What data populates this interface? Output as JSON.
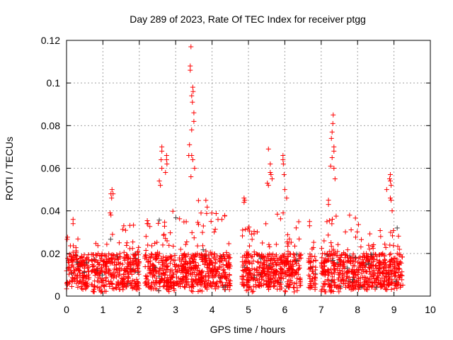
{
  "chart_data": {
    "type": "scatter",
    "title": "Day 289 of 2023, Rate Of TEC Index for receiver ptgg",
    "xlabel": "GPS time / hours",
    "ylabel": "ROTI / TECUs",
    "xlim": [
      0,
      10
    ],
    "ylim": [
      0,
      0.12
    ],
    "xticks": [
      "0",
      "1",
      "2",
      "3",
      "4",
      "5",
      "6",
      "7",
      "8",
      "9",
      "10"
    ],
    "yticks": [
      "0",
      "0.02",
      "0.04",
      "0.06",
      "0.08",
      "0.1",
      "0.12"
    ],
    "grid": true,
    "marker": "+",
    "color": "#ff0000",
    "dense_segments": [
      {
        "x": [
          0.0,
          0.62
        ],
        "y": [
          0.003,
          0.028
        ]
      },
      {
        "x": [
          0.68,
          1.12
        ],
        "y": [
          0.002,
          0.026
        ]
      },
      {
        "x": [
          1.15,
          2.0
        ],
        "y": [
          0.003,
          0.034
        ]
      },
      {
        "x": [
          2.15,
          2.5
        ],
        "y": [
          0.003,
          0.036
        ]
      },
      {
        "x": [
          2.5,
          3.3
        ],
        "y": [
          0.002,
          0.04
        ]
      },
      {
        "x": [
          3.3,
          3.9
        ],
        "y": [
          0.002,
          0.045
        ]
      },
      {
        "x": [
          3.9,
          4.5
        ],
        "y": [
          0.003,
          0.04
        ]
      },
      {
        "x": [
          4.82,
          5.4
        ],
        "y": [
          0.002,
          0.033
        ]
      },
      {
        "x": [
          5.4,
          6.0
        ],
        "y": [
          0.003,
          0.042
        ]
      },
      {
        "x": [
          6.0,
          6.45
        ],
        "y": [
          0.002,
          0.035
        ]
      },
      {
        "x": [
          6.65,
          6.85
        ],
        "y": [
          0.003,
          0.026
        ]
      },
      {
        "x": [
          7.0,
          7.6
        ],
        "y": [
          0.002,
          0.04
        ]
      },
      {
        "x": [
          7.6,
          8.3
        ],
        "y": [
          0.003,
          0.038
        ]
      },
      {
        "x": [
          8.3,
          9.25
        ],
        "y": [
          0.003,
          0.032
        ]
      }
    ],
    "outliers": [
      [
        0.18,
        0.036
      ],
      [
        0.18,
        0.034
      ],
      [
        1.25,
        0.05
      ],
      [
        1.22,
        0.048
      ],
      [
        1.28,
        0.048
      ],
      [
        1.24,
        0.046
      ],
      [
        1.2,
        0.039
      ],
      [
        1.22,
        0.038
      ],
      [
        2.62,
        0.07
      ],
      [
        2.62,
        0.068
      ],
      [
        2.6,
        0.064
      ],
      [
        2.62,
        0.06
      ],
      [
        2.55,
        0.054
      ],
      [
        2.58,
        0.052
      ],
      [
        2.75,
        0.066
      ],
      [
        2.75,
        0.064
      ],
      [
        2.76,
        0.062
      ],
      [
        2.72,
        0.058
      ],
      [
        3.42,
        0.117
      ],
      [
        3.4,
        0.108
      ],
      [
        3.4,
        0.106
      ],
      [
        3.47,
        0.098
      ],
      [
        3.48,
        0.096
      ],
      [
        3.44,
        0.094
      ],
      [
        3.46,
        0.091
      ],
      [
        3.5,
        0.086
      ],
      [
        3.5,
        0.082
      ],
      [
        3.44,
        0.078
      ],
      [
        3.38,
        0.071
      ],
      [
        3.36,
        0.066
      ],
      [
        3.44,
        0.066
      ],
      [
        3.47,
        0.064
      ],
      [
        3.42,
        0.056
      ],
      [
        3.52,
        0.06
      ],
      [
        4.88,
        0.046
      ],
      [
        4.88,
        0.044
      ],
      [
        4.9,
        0.045
      ],
      [
        5.55,
        0.069
      ],
      [
        5.52,
        0.053
      ],
      [
        5.55,
        0.052
      ],
      [
        5.6,
        0.062
      ],
      [
        5.6,
        0.058
      ],
      [
        5.62,
        0.057
      ],
      [
        5.65,
        0.055
      ],
      [
        5.95,
        0.066
      ],
      [
        5.95,
        0.064
      ],
      [
        5.96,
        0.062
      ],
      [
        5.98,
        0.057
      ],
      [
        6.0,
        0.05
      ],
      [
        6.05,
        0.046
      ],
      [
        6.68,
        0.035
      ],
      [
        6.68,
        0.033
      ],
      [
        7.33,
        0.085
      ],
      [
        7.32,
        0.081
      ],
      [
        7.3,
        0.077
      ],
      [
        7.28,
        0.074
      ],
      [
        7.35,
        0.07
      ],
      [
        7.35,
        0.068
      ],
      [
        7.3,
        0.065
      ],
      [
        7.26,
        0.061
      ],
      [
        7.35,
        0.06
      ],
      [
        7.38,
        0.055
      ],
      [
        7.2,
        0.045
      ],
      [
        7.2,
        0.043
      ],
      [
        8.9,
        0.057
      ],
      [
        8.88,
        0.055
      ],
      [
        8.9,
        0.054
      ],
      [
        8.92,
        0.052
      ],
      [
        8.8,
        0.05
      ],
      [
        8.9,
        0.046
      ],
      [
        8.92,
        0.045
      ],
      [
        8.95,
        0.04
      ]
    ]
  }
}
